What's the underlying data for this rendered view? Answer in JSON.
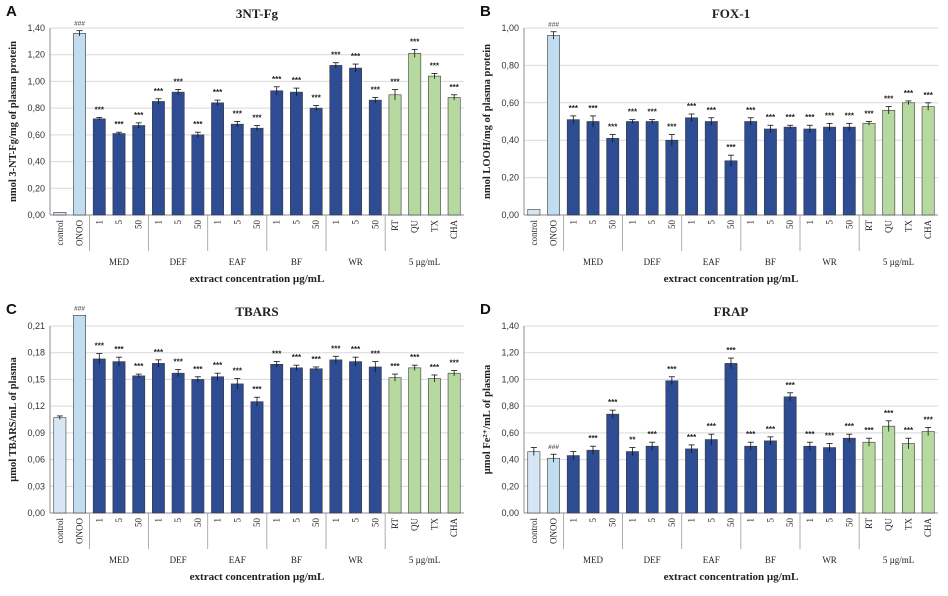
{
  "figure": {
    "xlabel": "extract concentration µg/mL",
    "categories": [
      "control",
      "ONOO",
      "1",
      "5",
      "50",
      "1",
      "5",
      "50",
      "1",
      "5",
      "50",
      "1",
      "5",
      "50",
      "1",
      "5",
      "50",
      "RT",
      "QU",
      "TX",
      "CHA"
    ],
    "groups": [
      {
        "label": "MED",
        "from": 2,
        "to": 4
      },
      {
        "label": "DEF",
        "from": 5,
        "to": 7
      },
      {
        "label": "EAF",
        "from": 8,
        "to": 10
      },
      {
        "label": "BF",
        "from": 11,
        "to": 13
      },
      {
        "label": "WR",
        "from": 14,
        "to": 16
      },
      {
        "label": "5 µg/mL",
        "from": 17,
        "to": 20
      }
    ],
    "bar_kinds": [
      "control",
      "onoo",
      "ext",
      "ext",
      "ext",
      "ext",
      "ext",
      "ext",
      "ext",
      "ext",
      "ext",
      "ext",
      "ext",
      "ext",
      "ext",
      "ext",
      "ext",
      "std",
      "std",
      "std",
      "std"
    ],
    "colors": {
      "control": "#d6e6f5",
      "onoo": "#c2dcf0",
      "ext": "#2e4c94",
      "std": "#b6d9a0",
      "edge": "#3a3a3a",
      "axis": "#8c8c8c",
      "grid": "#d9d9d9"
    }
  },
  "chart_data": [
    {
      "panel_letter": "A",
      "type": "bar",
      "title": "3NT-Fg",
      "ylabel": "nmol 3-NT-Fg/mg of plasma protein",
      "xlabel": "extract concentration µg/mL",
      "ylim": [
        0,
        1.4
      ],
      "yticks": [
        "0,00",
        "0,20",
        "0,40",
        "0,60",
        "0,80",
        "1,00",
        "1,20",
        "1,40"
      ],
      "values": [
        0.02,
        1.36,
        0.72,
        0.61,
        0.67,
        0.85,
        0.92,
        0.6,
        0.84,
        0.68,
        0.65,
        0.93,
        0.92,
        0.8,
        1.12,
        1.1,
        0.86,
        0.9,
        1.21,
        1.04,
        0.88
      ],
      "errors": [
        0.0,
        0.02,
        0.01,
        0.01,
        0.02,
        0.02,
        0.02,
        0.02,
        0.02,
        0.02,
        0.02,
        0.03,
        0.03,
        0.02,
        0.02,
        0.03,
        0.02,
        0.04,
        0.03,
        0.02,
        0.02
      ],
      "annotations": [
        "",
        "###",
        "***",
        "***",
        "***",
        "***",
        "***",
        "***",
        "***",
        "***",
        "***",
        "***",
        "***",
        "***",
        "***",
        "***",
        "***",
        "***",
        "***",
        "***",
        "***"
      ]
    },
    {
      "panel_letter": "B",
      "type": "bar",
      "title": "FOX-1",
      "ylabel": "nmol LOOH/mg of plasma protein",
      "xlabel": "extract concentration µg/mL",
      "ylim": [
        0,
        1.0
      ],
      "yticks": [
        "0,00",
        "0,20",
        "0,40",
        "0,60",
        "0,80",
        "1,00"
      ],
      "values": [
        0.03,
        0.96,
        0.51,
        0.5,
        0.41,
        0.5,
        0.5,
        0.4,
        0.52,
        0.5,
        0.29,
        0.5,
        0.46,
        0.47,
        0.46,
        0.47,
        0.47,
        0.49,
        0.56,
        0.6,
        0.58
      ],
      "errors": [
        0.0,
        0.02,
        0.02,
        0.03,
        0.02,
        0.01,
        0.01,
        0.03,
        0.02,
        0.02,
        0.03,
        0.02,
        0.02,
        0.01,
        0.02,
        0.02,
        0.02,
        0.01,
        0.02,
        0.01,
        0.02
      ],
      "annotations": [
        "",
        "###",
        "***",
        "***",
        "***",
        "***",
        "***",
        "***",
        "***",
        "***",
        "***",
        "***",
        "***",
        "***",
        "***",
        "***",
        "***",
        "***",
        "***",
        "***",
        "***"
      ]
    },
    {
      "panel_letter": "C",
      "type": "bar",
      "title": "TBARS",
      "ylabel": "µmol TBARS/mL of plasma",
      "xlabel": "extract concentration µg/mL",
      "ylim": [
        0,
        0.21
      ],
      "yticks": [
        "0,00",
        "0,03",
        "0,06",
        "0,09",
        "0,12",
        "0,15",
        "0,18",
        "0,21"
      ],
      "values": [
        0.107,
        0.222,
        0.173,
        0.17,
        0.154,
        0.168,
        0.157,
        0.15,
        0.153,
        0.145,
        0.125,
        0.167,
        0.163,
        0.162,
        0.172,
        0.17,
        0.164,
        0.152,
        0.163,
        0.151,
        0.157
      ],
      "errors": [
        0.002,
        0.0,
        0.006,
        0.005,
        0.002,
        0.004,
        0.004,
        0.003,
        0.004,
        0.006,
        0.005,
        0.003,
        0.003,
        0.002,
        0.004,
        0.005,
        0.006,
        0.004,
        0.003,
        0.004,
        0.003
      ],
      "annotations": [
        "",
        "###",
        "***",
        "***",
        "***",
        "***",
        "***",
        "***",
        "***",
        "***",
        "***",
        "***",
        "***",
        "***",
        "***",
        "***",
        "***",
        "***",
        "***",
        "***",
        "***"
      ]
    },
    {
      "panel_letter": "D",
      "type": "bar",
      "title": "FRAP",
      "ylabel": "µmol Fe²⁺/mL of plasma",
      "xlabel": "extract concentration µg/mL",
      "ylim": [
        0,
        1.4
      ],
      "yticks": [
        "0,00",
        "0,20",
        "0,40",
        "0,60",
        "0,80",
        "1,00",
        "1,20",
        "1,40"
      ],
      "values": [
        0.46,
        0.41,
        0.43,
        0.47,
        0.74,
        0.46,
        0.5,
        0.99,
        0.48,
        0.55,
        1.12,
        0.5,
        0.54,
        0.87,
        0.5,
        0.49,
        0.56,
        0.53,
        0.65,
        0.52,
        0.61
      ],
      "errors": [
        0.03,
        0.03,
        0.03,
        0.03,
        0.03,
        0.03,
        0.03,
        0.03,
        0.03,
        0.04,
        0.04,
        0.03,
        0.03,
        0.03,
        0.03,
        0.03,
        0.03,
        0.03,
        0.04,
        0.04,
        0.03
      ],
      "annotations": [
        "",
        "###",
        "",
        "***",
        "***",
        "**",
        "***",
        "***",
        "***",
        "***",
        "***",
        "***",
        "***",
        "***",
        "***",
        "***",
        "***",
        "***",
        "***",
        "***",
        "***"
      ]
    }
  ]
}
